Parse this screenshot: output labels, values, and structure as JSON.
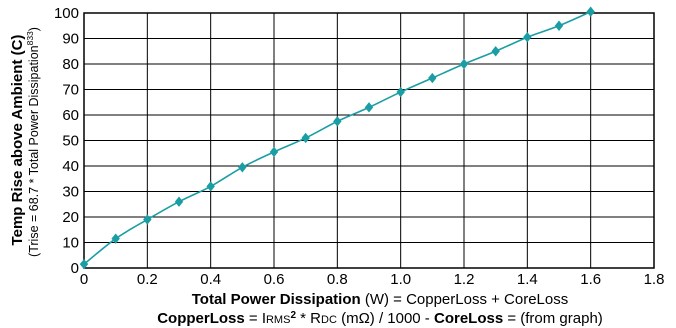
{
  "chart_data": {
    "type": "line",
    "x": [
      0,
      0.1,
      0.2,
      0.3,
      0.4,
      0.5,
      0.6,
      0.7,
      0.8,
      0.9,
      1.0,
      1.1,
      1.2,
      1.3,
      1.4,
      1.5,
      1.6
    ],
    "series": [
      {
        "values": [
          1.5,
          11.5,
          19,
          26,
          32,
          39.5,
          45.5,
          51,
          57.5,
          63,
          69,
          74.5,
          80,
          85,
          90.5,
          95,
          100.5
        ]
      }
    ],
    "xlim": [
      0,
      1.8
    ],
    "ylim": [
      0,
      100
    ],
    "x_ticks": [
      "0",
      "0.2",
      "0.4",
      "0.6",
      "0.8",
      "1.0",
      "1.2",
      "1.4",
      "1.6",
      "1.8"
    ],
    "y_ticks": [
      "0",
      "10",
      "20",
      "30",
      "40",
      "50",
      "60",
      "70",
      "80",
      "90",
      "100"
    ],
    "grid": true,
    "ylabel": {
      "main": "Temp Rise above Ambient (C)",
      "sub_prefix": "(Trise = 68.7 * Total Power Dissipation",
      "sub_exp": "833",
      "sub_suffix": ")"
    },
    "xlabel_line1": {
      "bold": "Total Power Dissipation",
      "rest": " (W) = CopperLoss + CoreLoss"
    },
    "xlabel_line2": {
      "bold1": "CopperLoss",
      "t1": " = I",
      "sc1": "RMS",
      "sup": "2",
      "t2": " * R",
      "sc2": "DC",
      "t3": " (mΩ) / 1000  -  ",
      "bold2": "CoreLoss",
      "t4": " = (from graph)"
    },
    "colors": {
      "marker": "#1a9ea4",
      "line": "#1a9ea4",
      "grid": "#000000"
    }
  }
}
